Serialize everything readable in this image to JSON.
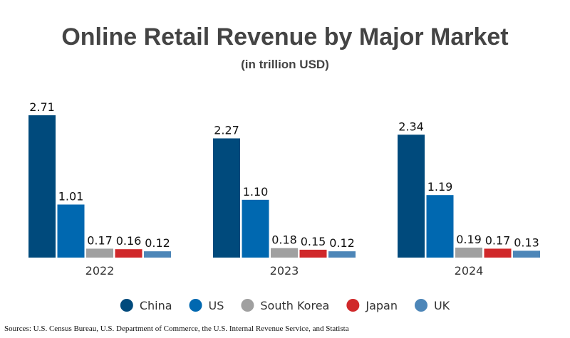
{
  "chart_data": {
    "type": "bar",
    "title": "Online Retail Revenue by Major Market",
    "subtitle": "(in trillion USD)",
    "categories": [
      "2022",
      "2023",
      "2024"
    ],
    "series": [
      {
        "name": "China",
        "color": "#004a7c",
        "values": [
          2.71,
          2.27,
          2.34
        ],
        "labels": [
          "2.71",
          "2.27",
          "2.34"
        ]
      },
      {
        "name": "US",
        "color": "#0068b0",
        "values": [
          1.01,
          1.1,
          1.19
        ],
        "labels": [
          "1.01",
          "1.10",
          "1.19"
        ]
      },
      {
        "name": "South Korea",
        "color": "#a0a0a0",
        "values": [
          0.17,
          0.18,
          0.19
        ],
        "labels": [
          "0.17",
          "0.18",
          "0.19"
        ]
      },
      {
        "name": "Japan",
        "color": "#d0282a",
        "values": [
          0.16,
          0.15,
          0.17
        ],
        "labels": [
          "0.16",
          "0.15",
          "0.17"
        ]
      },
      {
        "name": "UK",
        "color": "#4d86b8",
        "values": [
          0.12,
          0.12,
          0.13
        ],
        "labels": [
          "0.12",
          "0.12",
          "0.13"
        ]
      }
    ],
    "ylim": [
      0,
      2.71
    ],
    "xlabel": "",
    "ylabel": "",
    "grid": false,
    "legend_position": "bottom",
    "source": "Sources: U.S. Census Bureau, U.S. Department of Commerce, the U.S. Internal Revenue Service, and Statista"
  }
}
